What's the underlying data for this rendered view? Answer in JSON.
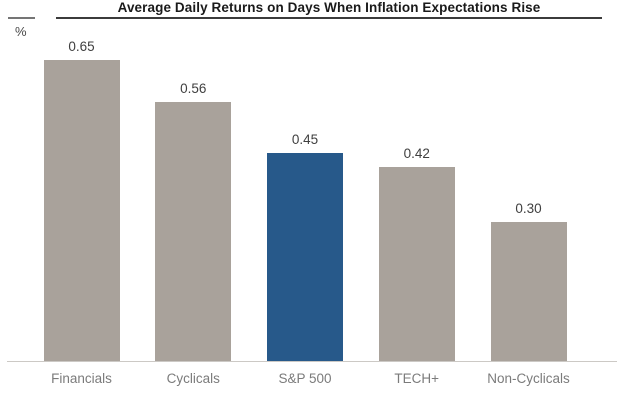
{
  "title": "Average Daily Returns on Days When Inflation Expectations Rise",
  "axis": {
    "unit_label": "%"
  },
  "chart_data": {
    "type": "bar",
    "title": "Average Daily Returns on Days When Inflation Expectations Rise",
    "categories": [
      "Financials",
      "Cyclicals",
      "S&P 500",
      "TECH+",
      "Non-Cyclicals"
    ],
    "values": [
      0.65,
      0.56,
      0.45,
      0.42,
      0.3
    ],
    "value_labels": [
      "0.65",
      "0.56",
      "0.45",
      "0.42",
      "0.30"
    ],
    "ylabel": "%",
    "ylim": [
      0,
      0.78
    ],
    "grid": false,
    "legend": false,
    "highlight_index": 2,
    "colors": {
      "bar_default": "#A9A29B",
      "bar_highlight": "#27598A",
      "value_label": "#3F3F3F",
      "category_label": "#7B7B7B",
      "baseline": "#CCC9C5",
      "title": "#1A1A1A"
    }
  }
}
